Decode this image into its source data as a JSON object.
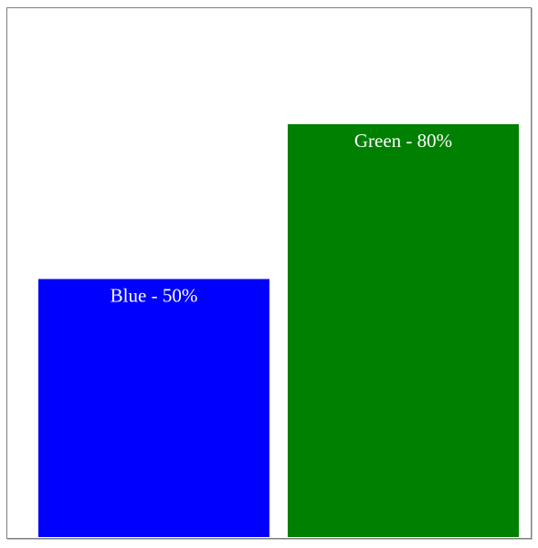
{
  "chart_data": {
    "type": "bar",
    "categories": [
      "Blue",
      "Green"
    ],
    "values": [
      50,
      80
    ],
    "labels": [
      "Blue - 50%",
      "Green - 80%"
    ],
    "colors": [
      "#0000ff",
      "#008000"
    ],
    "ylim": [
      0,
      100
    ],
    "title": "",
    "xlabel": "",
    "ylabel": "",
    "grid": false,
    "legend": "none"
  }
}
